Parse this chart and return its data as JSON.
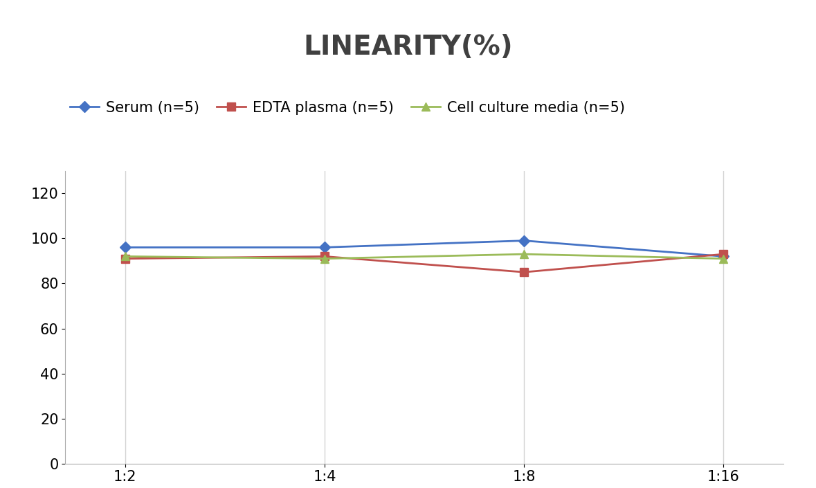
{
  "title": "LINEARITY(%)",
  "x_labels": [
    "1:2",
    "1:4",
    "1:8",
    "1:16"
  ],
  "x_positions": [
    0,
    1,
    2,
    3
  ],
  "series": [
    {
      "name": "Serum (n=5)",
      "values": [
        96,
        96,
        99,
        92
      ],
      "color": "#4472C4",
      "marker": "D",
      "marker_size": 8,
      "linewidth": 2
    },
    {
      "name": "EDTA plasma (n=5)",
      "values": [
        91,
        92,
        85,
        93
      ],
      "color": "#C0504D",
      "marker": "s",
      "marker_size": 8,
      "linewidth": 2
    },
    {
      "name": "Cell culture media (n=5)",
      "values": [
        92,
        91,
        93,
        91
      ],
      "color": "#9BBB59",
      "marker": "^",
      "marker_size": 8,
      "linewidth": 2
    }
  ],
  "ylim": [
    0,
    130
  ],
  "yticks": [
    0,
    20,
    40,
    60,
    80,
    100,
    120
  ],
  "background_color": "#FFFFFF",
  "grid_color": "#D3D3D3",
  "title_fontsize": 28,
  "tick_fontsize": 15,
  "legend_fontsize": 15,
  "title_color": "#404040"
}
